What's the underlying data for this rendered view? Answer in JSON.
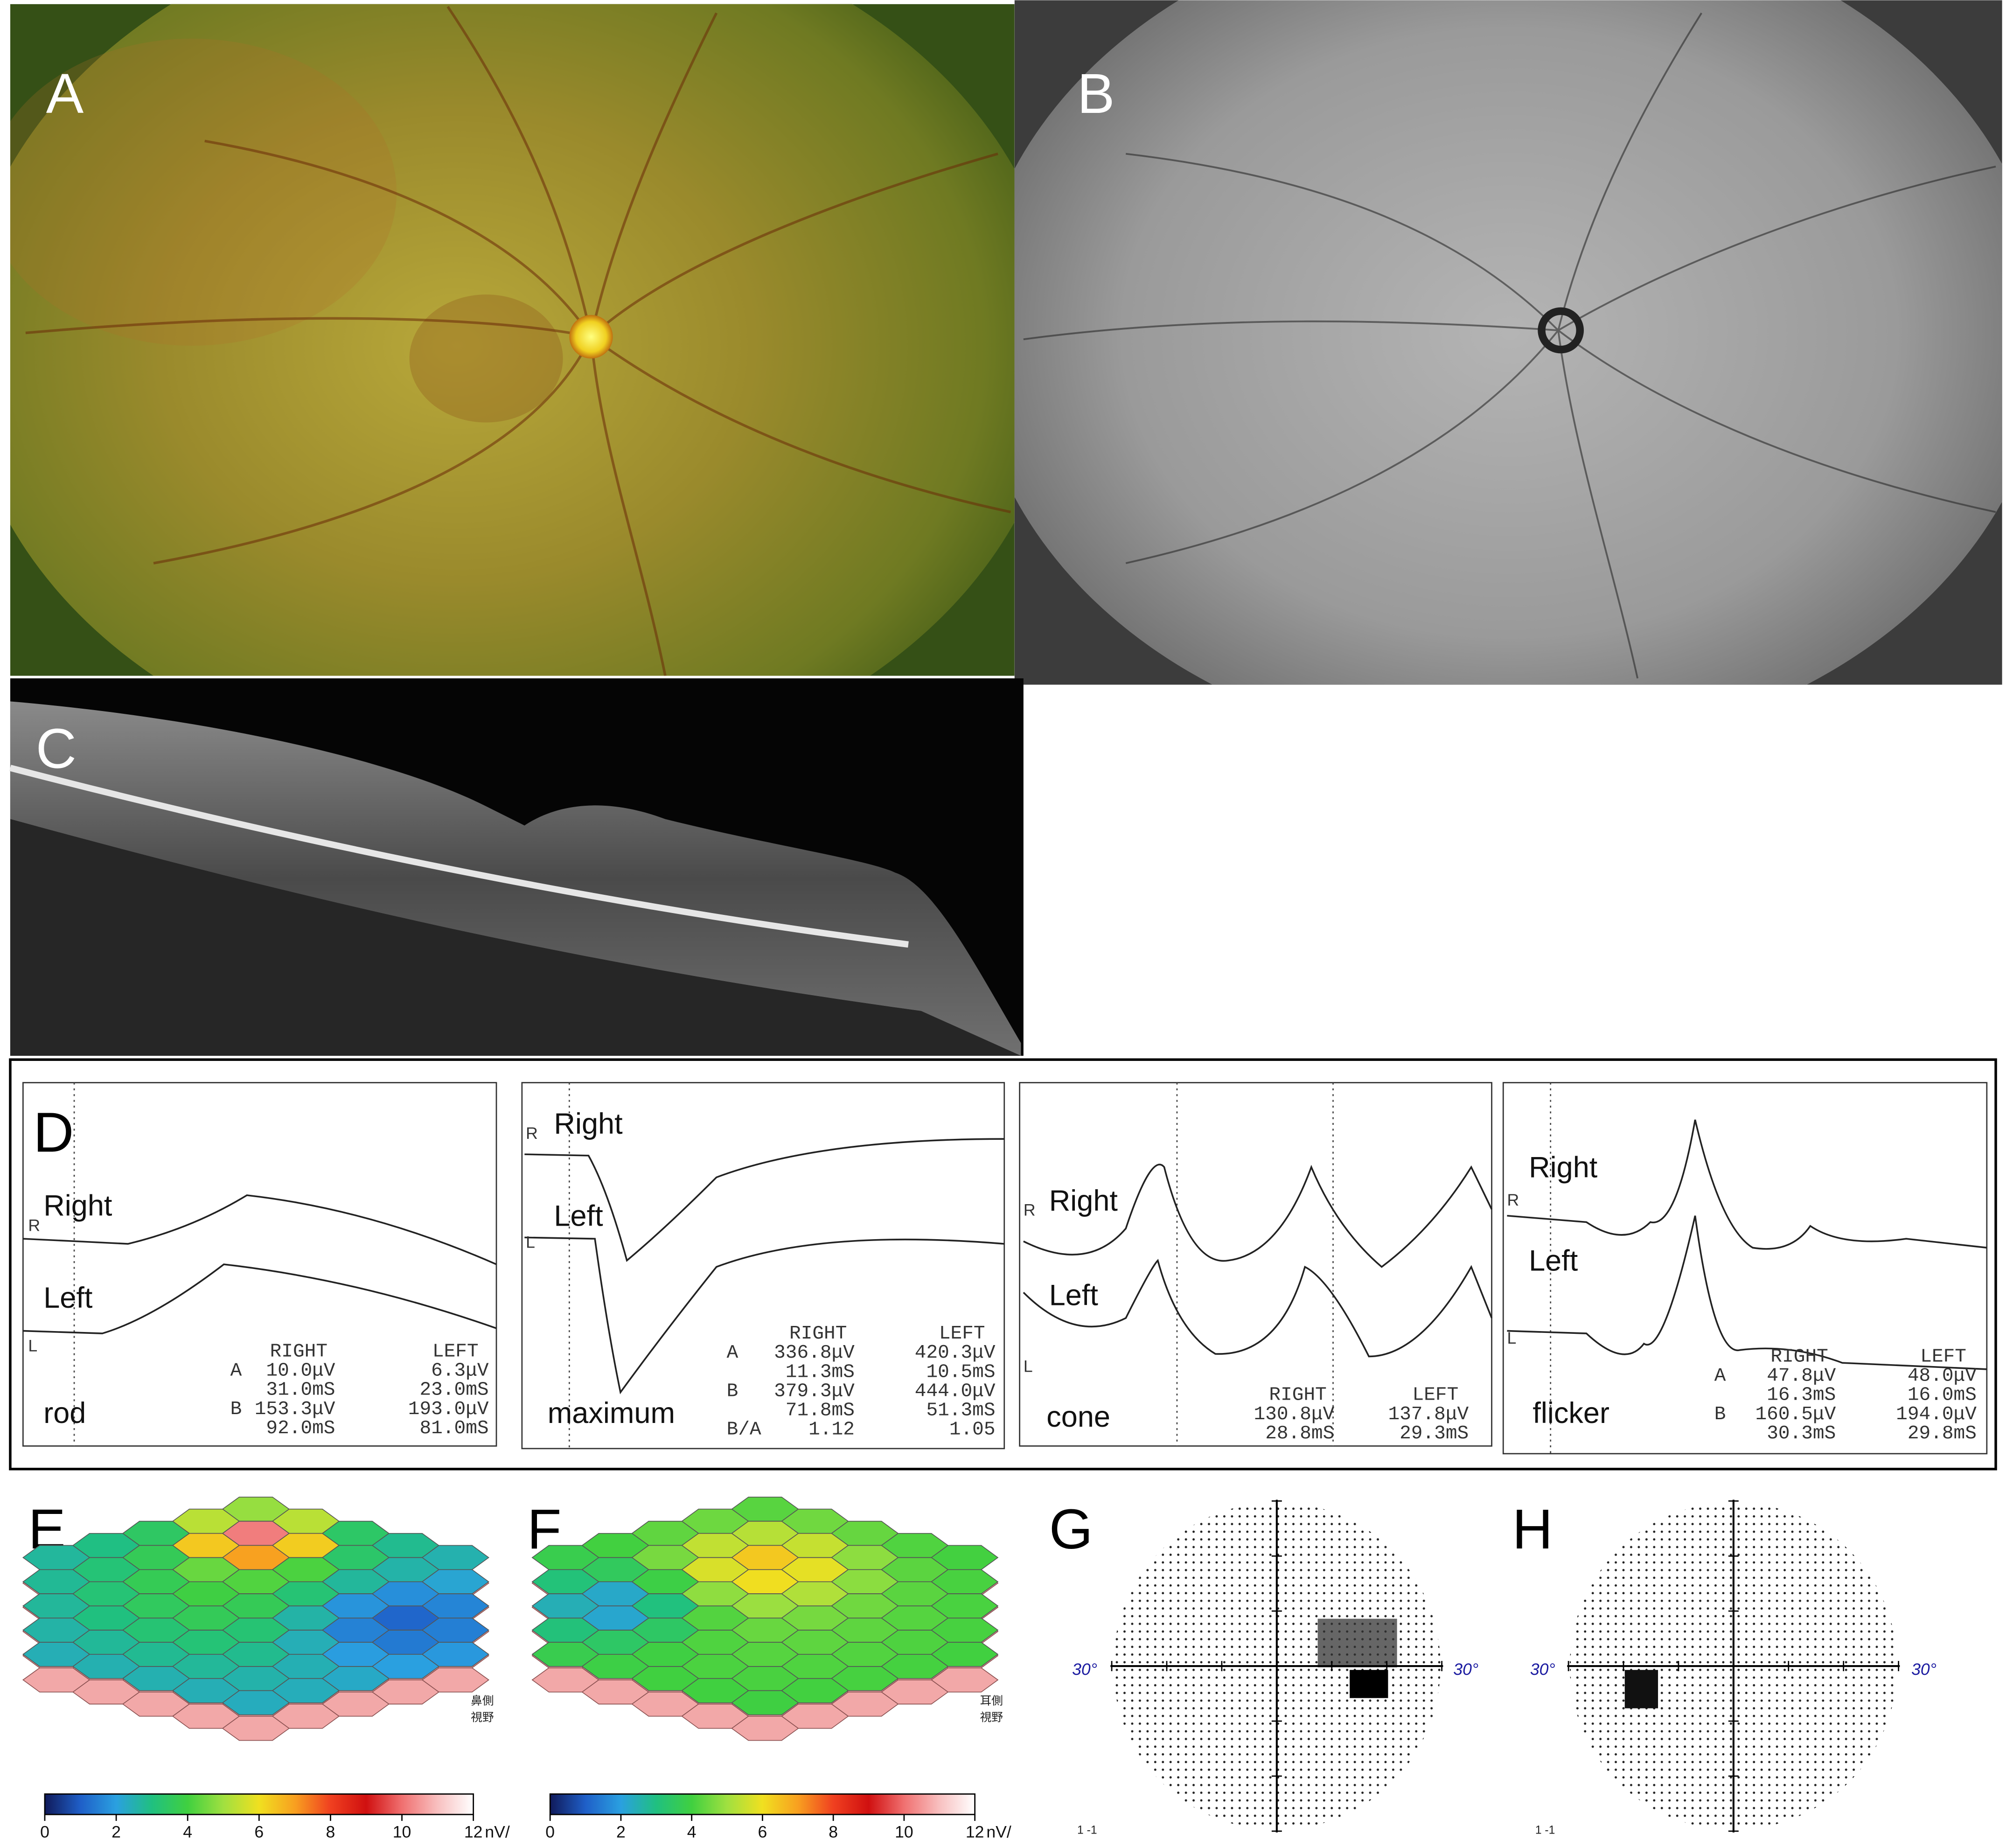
{
  "fundus_color": {
    "label": "A"
  },
  "fundus_autofluorescence": {
    "label": "B"
  },
  "oct": {
    "label": "C"
  },
  "erg": {
    "label": "D",
    "plots": [
      {
        "name": "rod",
        "right_label": "Right",
        "left_label": "Left",
        "right_marker": "R",
        "left_marker": "L",
        "columns": [
          "RIGHT",
          "LEFT"
        ],
        "rows": [
          {
            "key": "A",
            "right": "10.0μV",
            "left": "6.3μV"
          },
          {
            "right": "31.0mS",
            "left": "23.0mS"
          },
          {
            "key": "B",
            "right": "153.3μV",
            "left": "193.0μV"
          },
          {
            "right": "92.0mS",
            "left": "81.0mS"
          }
        ]
      },
      {
        "name": "maximum",
        "right_label": "Right",
        "left_label": "Left",
        "right_marker": "R",
        "left_marker": "L",
        "columns": [
          "RIGHT",
          "LEFT"
        ],
        "rows": [
          {
            "key": "A",
            "right": "336.8μV",
            "left": "420.3μV"
          },
          {
            "right": "11.3mS",
            "left": "10.5mS"
          },
          {
            "key": "B",
            "right": "379.3μV",
            "left": "444.0μV"
          },
          {
            "right": "71.8mS",
            "left": "51.3mS"
          },
          {
            "key": "B/A",
            "right": "1.12",
            "left": "1.05"
          }
        ]
      },
      {
        "name": "cone",
        "right_label": "Right",
        "left_label": "Left",
        "right_marker": "R",
        "left_marker": "L",
        "columns": [
          "RIGHT",
          "LEFT"
        ],
        "rows": [
          {
            "right": "130.8μV",
            "left": "137.8μV"
          },
          {
            "right": "28.8mS",
            "left": "29.3mS"
          }
        ]
      },
      {
        "name": "flicker",
        "right_label": "Right",
        "left_label": "Left",
        "right_marker": "R",
        "left_marker": "L",
        "columns": [
          "RIGHT",
          "LEFT"
        ],
        "rows": [
          {
            "key": "A",
            "right": "47.8μV",
            "left": "48.0μV"
          },
          {
            "right": "16.3mS",
            "left": "16.0mS"
          },
          {
            "key": "B",
            "right": "160.5μV",
            "left": "194.0μV"
          },
          {
            "right": "30.3mS",
            "left": "29.8mS"
          }
        ]
      }
    ]
  },
  "mferg": [
    {
      "label": "E",
      "side_note": [
        "鼻側",
        "視野"
      ],
      "colorbar": {
        "lim": [
          0,
          12
        ],
        "ticks": [
          0,
          2,
          4,
          6,
          8,
          10,
          12
        ],
        "unit": "nV/"
      }
    },
    {
      "label": "F",
      "side_note": [
        "耳側",
        "視野"
      ],
      "colorbar": {
        "lim": [
          0,
          12
        ],
        "ticks": [
          0,
          2,
          4,
          6,
          8,
          10,
          12
        ],
        "unit": "nV/"
      }
    }
  ],
  "visual_fields": [
    {
      "label": "G",
      "left_extent": "30°",
      "right_extent": "30°",
      "scale_note": "1 -1"
    },
    {
      "label": "H",
      "left_extent": "30°",
      "right_extent": "30°",
      "scale_note": "1 -1"
    }
  ]
}
